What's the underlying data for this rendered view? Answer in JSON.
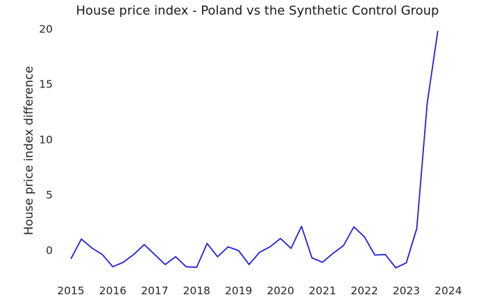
{
  "chart_data": {
    "type": "line",
    "title": "House price index - Poland vs the Synthetic Control Group",
    "xlabel": "",
    "ylabel": "House price index difference",
    "x_ticks": [
      "2015",
      "2016",
      "2017",
      "2018",
      "2019",
      "2020",
      "2021",
      "2022",
      "2023",
      "2024"
    ],
    "y_ticks": [
      "0",
      "5",
      "10",
      "15",
      "20"
    ],
    "xlim": [
      "2014-11",
      "2024-05"
    ],
    "ylim": [
      -2.8,
      20.9
    ],
    "grid": false,
    "line_color": "#1f1fe0",
    "series": [
      {
        "name": "",
        "x": [
          "2015-01",
          "2015-04",
          "2015-07",
          "2015-10",
          "2016-01",
          "2016-04",
          "2016-07",
          "2016-10",
          "2017-01",
          "2017-04",
          "2017-07",
          "2017-10",
          "2018-01",
          "2018-04",
          "2018-07",
          "2018-10",
          "2019-01",
          "2019-04",
          "2019-07",
          "2019-10",
          "2020-01",
          "2020-04",
          "2020-07",
          "2020-10",
          "2021-01",
          "2021-04",
          "2021-07",
          "2021-10",
          "2022-01",
          "2022-04",
          "2022-07",
          "2022-10",
          "2023-01",
          "2023-04",
          "2023-07",
          "2023-10"
        ],
        "values": [
          -0.8,
          1.0,
          0.2,
          -0.4,
          -1.5,
          -1.1,
          -0.4,
          0.5,
          -0.4,
          -1.3,
          -0.6,
          -1.5,
          -1.55,
          0.6,
          -0.6,
          0.3,
          -0.05,
          -1.3,
          -0.2,
          0.3,
          1.05,
          0.15,
          2.15,
          -0.7,
          -1.1,
          -0.3,
          0.4,
          2.1,
          1.2,
          -0.45,
          -0.4,
          -1.6,
          -1.15,
          1.95,
          13.3,
          19.8
        ]
      }
    ]
  }
}
